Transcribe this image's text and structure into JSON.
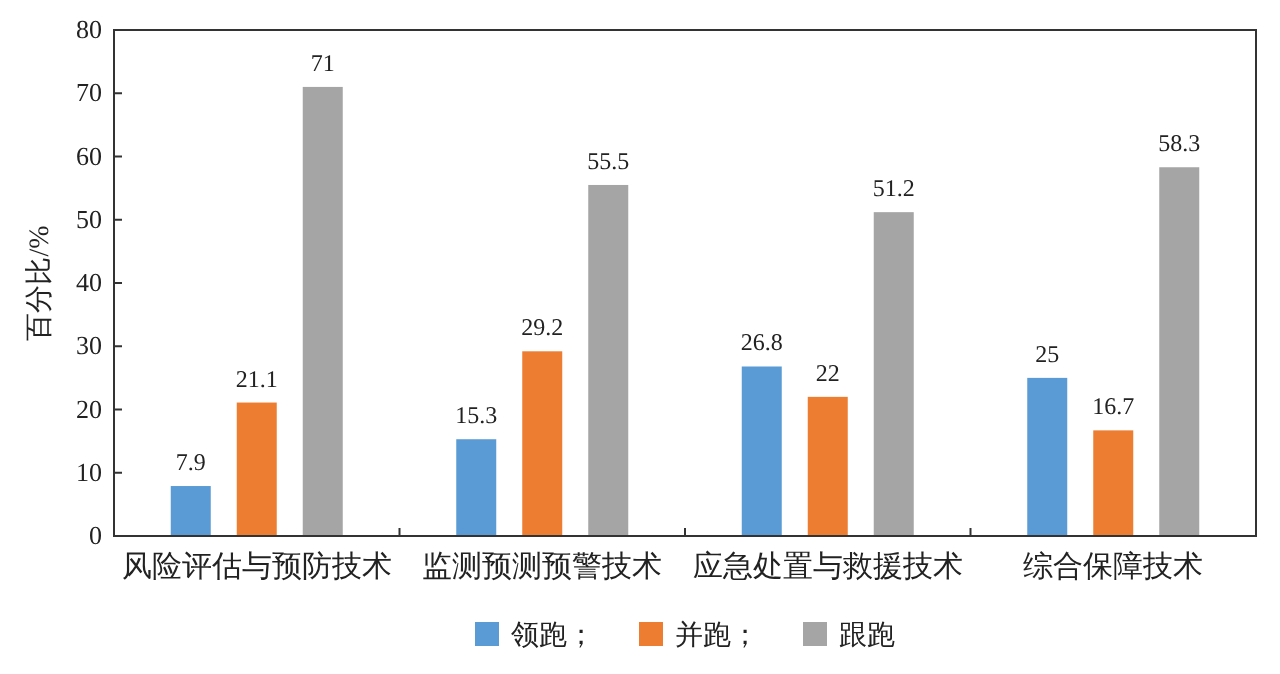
{
  "chart_data": {
    "type": "bar",
    "ylabel": "百分比/%",
    "categories": [
      "风险评估与预防技术",
      "监测预测预警技术",
      "应急处置与救援技术",
      "综合保障技术"
    ],
    "series": [
      {
        "name": "领跑；",
        "color": "#5b9bd5",
        "values": [
          7.9,
          15.3,
          26.8,
          25
        ]
      },
      {
        "name": "并跑；",
        "color": "#ed7d31",
        "values": [
          21.1,
          29.2,
          22,
          16.7
        ]
      },
      {
        "name": "跟跑",
        "color": "#a5a5a5",
        "values": [
          71,
          55.5,
          51.2,
          58.3
        ]
      }
    ],
    "ylim": [
      0,
      80
    ],
    "yticks": [
      0,
      10,
      20,
      30,
      40,
      50,
      60,
      70,
      80
    ],
    "data_labels": true,
    "legend": "bottom",
    "grid": false
  }
}
